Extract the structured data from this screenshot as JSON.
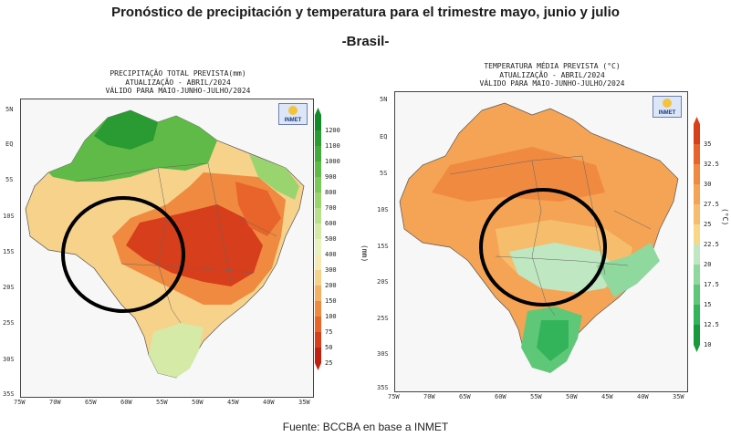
{
  "header": {
    "title": "Pronóstico de precipitación y temperatura para el trimestre mayo, junio y julio",
    "subtitle": "-Brasil-"
  },
  "source": "Fuente: BCCBA en base a INMET",
  "maps": [
    {
      "title_lines": [
        "PRECIPITAÇÃO TOTAL PREVISTA(mm)",
        "ATUALIZAÇÃO - ABRIL/2024",
        "VÁLIDO PARA MAIO-JUNHO-JULHO/2024"
      ],
      "logo": "INMET",
      "unit": "(mm)",
      "colorbar_values": [
        "1200",
        "1100",
        "1000",
        "900",
        "800",
        "700",
        "600",
        "500",
        "400",
        "300",
        "200",
        "150",
        "100",
        "75",
        "50",
        "25"
      ],
      "colorbar_colors": [
        "#138a2a",
        "#2a9a32",
        "#42aa3c",
        "#5fba48",
        "#7cc85a",
        "#9ad46e",
        "#b8df8a",
        "#d4eaa6",
        "#e8f1c0",
        "#f6eab4",
        "#f6d28a",
        "#f4b064",
        "#f08a40",
        "#e8642a",
        "#d63e1c",
        "#c0200f"
      ],
      "lat_labels": [
        "5N",
        "EQ",
        "5S",
        "10S",
        "15S",
        "20S",
        "25S",
        "30S",
        "35S"
      ],
      "lon_labels": [
        "75W",
        "70W",
        "65W",
        "60W",
        "55W",
        "50W",
        "45W",
        "40W",
        "35W"
      ],
      "circle": "highlight-circle"
    },
    {
      "title_lines": [
        "TEMPERATURA MÉDIA PREVISTA (°C)",
        "ATUALIZAÇÃO - ABRIL/2024",
        "VÁLIDO PARA MAIO-JUNHO-JULHO/2024"
      ],
      "logo": "INMET",
      "unit": "(°C)",
      "colorbar_values": [
        "35",
        "32.5",
        "30",
        "27.5",
        "25",
        "22.5",
        "20",
        "17.5",
        "15",
        "12.5",
        "10"
      ],
      "colorbar_colors": [
        "#d8401a",
        "#e8642a",
        "#f08a40",
        "#f4a454",
        "#f6be6c",
        "#f8d888",
        "#bfe7c2",
        "#8fd89e",
        "#5fc878",
        "#33b45a",
        "#169a3a"
      ],
      "lat_labels": [
        "5N",
        "EQ",
        "5S",
        "10S",
        "15S",
        "20S",
        "25S",
        "30S",
        "35S"
      ],
      "lon_labels": [
        "75W",
        "70W",
        "65W",
        "60W",
        "55W",
        "50W",
        "45W",
        "40W",
        "35W"
      ],
      "circle": "highlight-circle"
    }
  ]
}
